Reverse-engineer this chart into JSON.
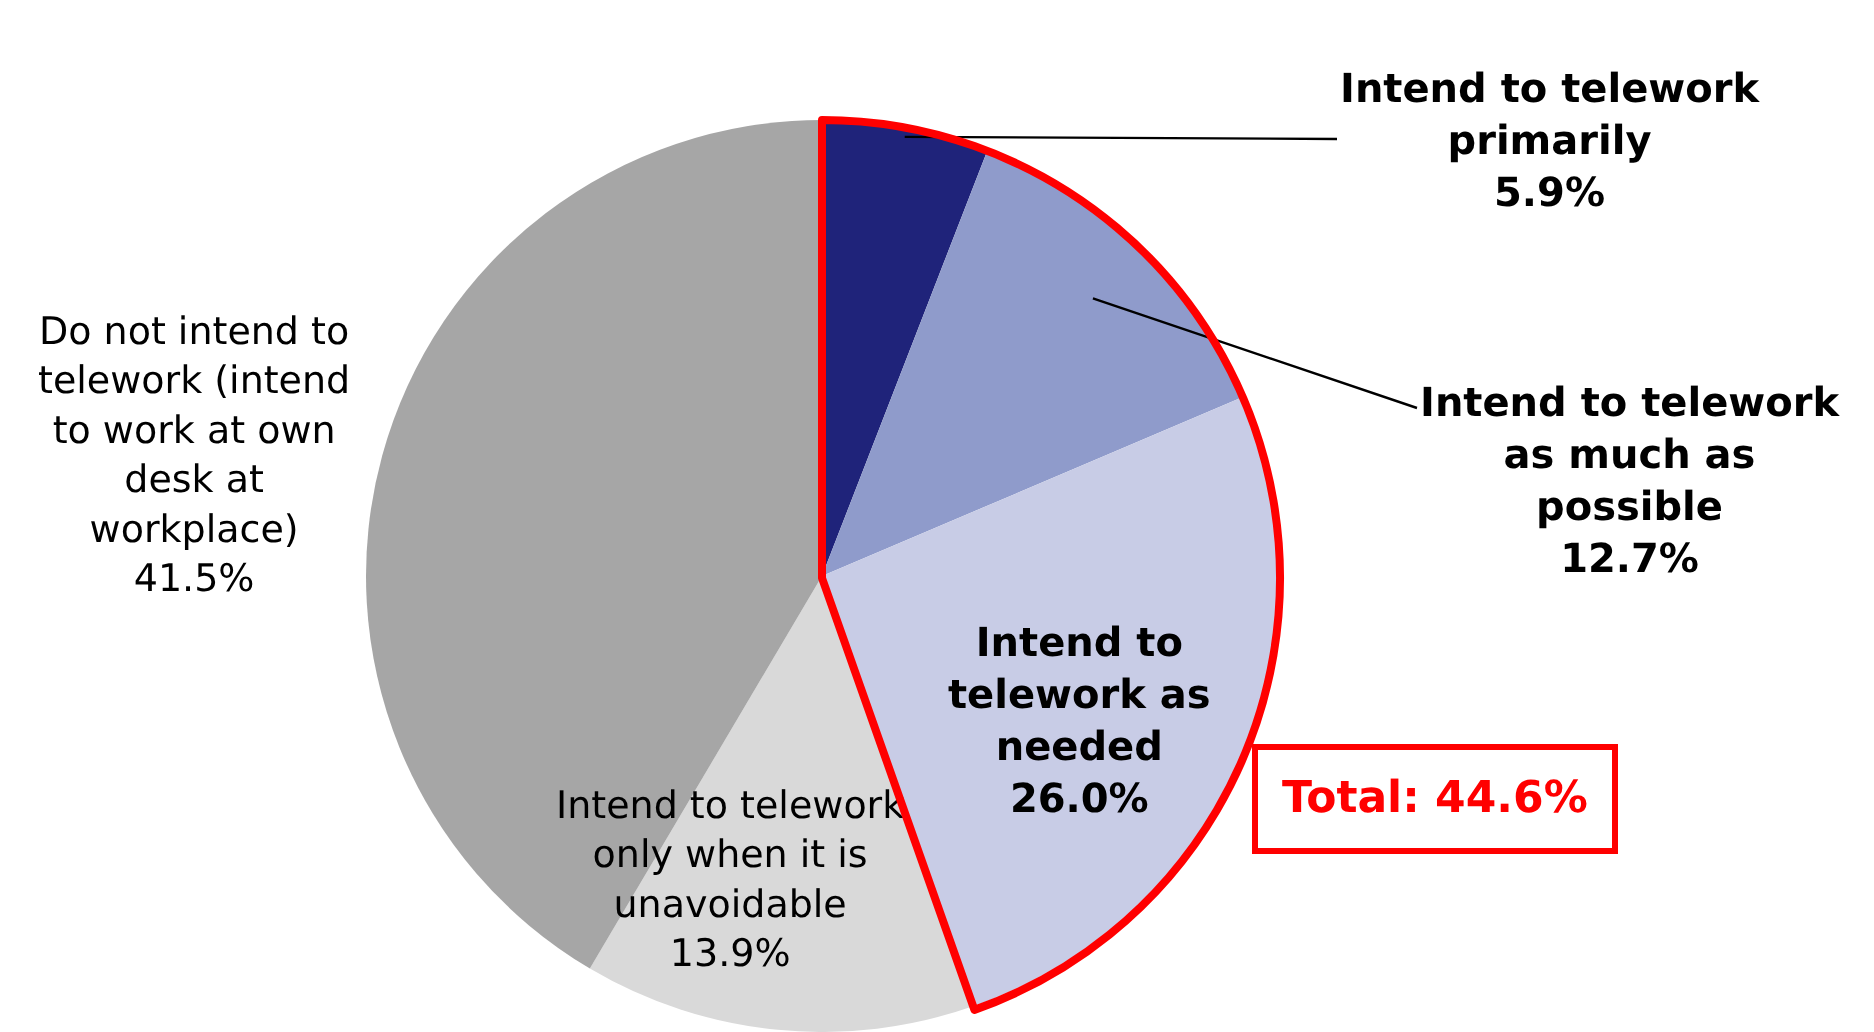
{
  "chart_data": {
    "type": "pie",
    "categories": [
      "Intend to telework primarily",
      "Intend to telework as much as possible",
      "Intend to telework as needed",
      "Intend to telework only when it is unavoidable",
      "Do not intend to telework (intend to work at own desk at workplace)"
    ],
    "values": [
      5.9,
      12.7,
      26.0,
      13.9,
      41.5
    ],
    "value_labels": [
      "5.9%",
      "12.7%",
      "26.0%",
      "13.9%",
      "41.5%"
    ],
    "colors": [
      "#1f237a",
      "#8f9bcb",
      "#c8cce6",
      "#d9d9d9",
      "#a6a6a6"
    ],
    "annotations": [
      "Total: 44.6%"
    ],
    "legend": false
  }
}
